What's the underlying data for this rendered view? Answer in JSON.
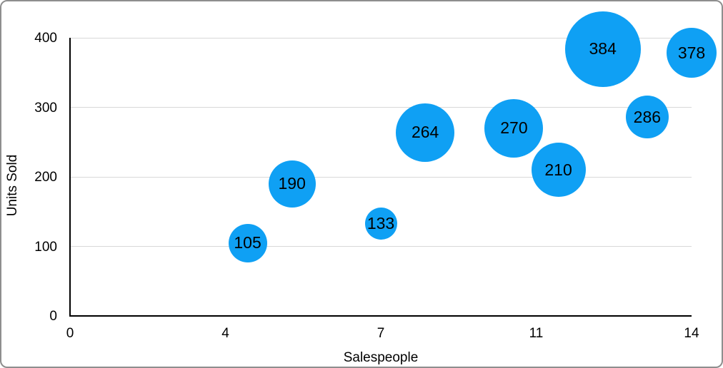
{
  "chart_data": {
    "type": "bubble",
    "title": "",
    "xlabel": "Salespeople",
    "ylabel": "Units Sold",
    "xlim": [
      0,
      14
    ],
    "ylim": [
      0,
      400
    ],
    "grid": true,
    "legend": false,
    "x_ticks": [
      {
        "label": "0",
        "value": 0
      },
      {
        "label": "4",
        "value": 3.5
      },
      {
        "label": "7",
        "value": 7
      },
      {
        "label": "11",
        "value": 10.5
      },
      {
        "label": "14",
        "value": 14
      }
    ],
    "y_ticks": [
      {
        "label": "0",
        "value": 0
      },
      {
        "label": "100",
        "value": 100
      },
      {
        "label": "200",
        "value": 200
      },
      {
        "label": "300",
        "value": 300
      },
      {
        "label": "400",
        "value": 400
      }
    ],
    "points": [
      {
        "x": 4,
        "y": 105,
        "label": "105",
        "radius_px": 27
      },
      {
        "x": 5,
        "y": 190,
        "label": "190",
        "radius_px": 33
      },
      {
        "x": 7,
        "y": 133,
        "label": "133",
        "radius_px": 22.5
      },
      {
        "x": 8,
        "y": 264,
        "label": "264",
        "radius_px": 41
      },
      {
        "x": 10,
        "y": 270,
        "label": "270",
        "radius_px": 41
      },
      {
        "x": 11,
        "y": 210,
        "label": "210",
        "radius_px": 38
      },
      {
        "x": 12,
        "y": 384,
        "label": "384",
        "radius_px": 53
      },
      {
        "x": 13,
        "y": 286,
        "label": "286",
        "radius_px": 30
      },
      {
        "x": 14,
        "y": 378,
        "label": "378",
        "radius_px": 35
      }
    ]
  },
  "colors": {
    "bubble": "#0FA0F4",
    "bubble_label": "#000000",
    "grid": "#D8D8D8",
    "axis": "#000000",
    "text": "#000000",
    "background": "#FFFFFF",
    "border": "#8E8E8E"
  }
}
